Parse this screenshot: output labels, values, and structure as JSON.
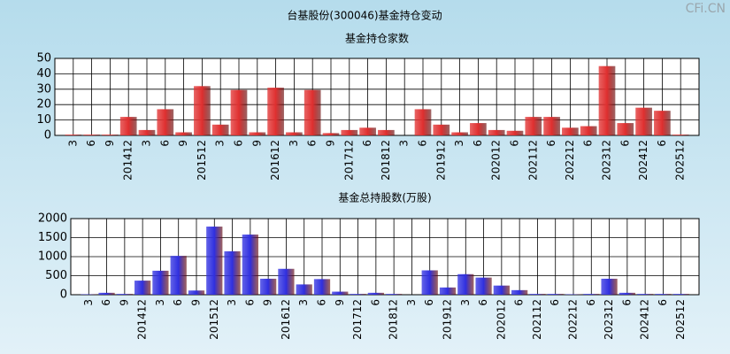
{
  "title": "台基股份(300046)基金持仓变动",
  "watermark": "CFi.CN",
  "chart_data": [
    {
      "type": "bar",
      "title": "基金持仓家数",
      "color": "#e03030",
      "categories": [
        "3",
        "6",
        "9",
        "201412",
        "3",
        "6",
        "9",
        "201512",
        "3",
        "6",
        "9",
        "201612",
        "3",
        "6",
        "9",
        "201712",
        "6",
        "201812",
        "3",
        "6",
        "201912",
        "3",
        "6",
        "202012",
        "6",
        "202112",
        "6",
        "202212",
        "6",
        "202312",
        "6",
        "202412",
        "6",
        "202512"
      ],
      "values": [
        0.5,
        0.5,
        0.5,
        12,
        3.5,
        17,
        2,
        32,
        7,
        29.5,
        2,
        31,
        2,
        29.5,
        1.5,
        3.5,
        5,
        3.5,
        0,
        17,
        7,
        2,
        8,
        3.5,
        3,
        12,
        12,
        5,
        6,
        45,
        8,
        18,
        16,
        0.5
      ],
      "ylim": [
        0,
        50
      ],
      "yticks": [
        0,
        10,
        20,
        30,
        40,
        50
      ],
      "grid": true
    },
    {
      "type": "bar",
      "title": "基金总持股数(万股)",
      "color": "#3030e0",
      "categories": [
        "3",
        "6",
        "9",
        "201412",
        "3",
        "6",
        "9",
        "201512",
        "3",
        "6",
        "9",
        "201612",
        "3",
        "6",
        "9",
        "201712",
        "6",
        "201812",
        "3",
        "6",
        "201912",
        "3",
        "6",
        "202012",
        "6",
        "202112",
        "6",
        "202212",
        "6",
        "202312",
        "6",
        "202412",
        "6",
        "202512"
      ],
      "values": [
        10,
        50,
        20,
        370,
        630,
        1020,
        110,
        1790,
        1140,
        1580,
        420,
        680,
        270,
        410,
        80,
        20,
        50,
        20,
        0,
        640,
        190,
        540,
        450,
        240,
        120,
        20,
        20,
        10,
        20,
        420,
        50,
        20,
        20,
        20
      ],
      "ylim": [
        0,
        2000
      ],
      "yticks": [
        0,
        500,
        1000,
        1500,
        2000
      ],
      "grid": true
    }
  ]
}
